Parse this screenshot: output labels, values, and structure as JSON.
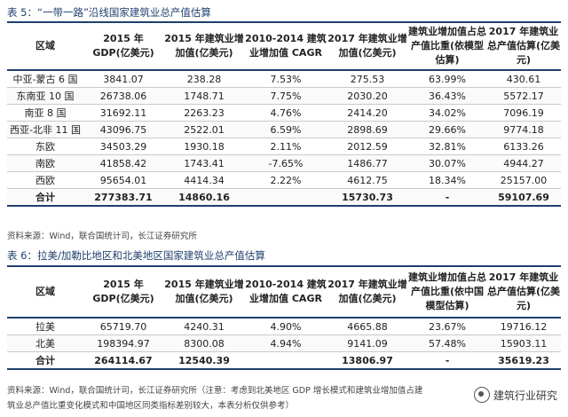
{
  "table5": {
    "caption_label": "表 5：",
    "caption_text": "“一带一路”沿线国家建筑业总产值估算",
    "headers": [
      "区域",
      "2015 年 GDP(亿美元)",
      "2015 年建筑业增加值(亿美元)",
      "2010-2014 建筑业增加值 CAGR",
      "2017 年建筑业增加值(亿美元)",
      "建筑业增加值占总产值比重(依模型估算)",
      "2017 年建筑业总产值估算(亿美元)"
    ],
    "rows": [
      [
        "中亚-蒙古 6 国",
        "3841.07",
        "238.28",
        "7.53%",
        "275.53",
        "63.99%",
        "430.61"
      ],
      [
        "东南亚 10 国",
        "26738.06",
        "1748.71",
        "7.75%",
        "2030.20",
        "36.43%",
        "5572.17"
      ],
      [
        "南亚 8 国",
        "31692.11",
        "2263.23",
        "4.76%",
        "2414.20",
        "34.02%",
        "7096.19"
      ],
      [
        "西亚-北非 11 国",
        "43096.75",
        "2522.01",
        "6.59%",
        "2898.69",
        "29.66%",
        "9774.18"
      ],
      [
        "东欧",
        "34503.29",
        "1930.18",
        "2.11%",
        "2012.59",
        "32.81%",
        "6133.26"
      ],
      [
        "南欧",
        "41858.42",
        "1743.41",
        "-7.65%",
        "1486.77",
        "30.07%",
        "4944.27"
      ],
      [
        "西欧",
        "95654.01",
        "4414.34",
        "2.22%",
        "4612.75",
        "18.34%",
        "25157.00"
      ]
    ],
    "total": [
      "合计",
      "277383.71",
      "14860.16",
      "",
      "15730.73",
      "-",
      "59107.69"
    ],
    "source": "资料来源：Wind，联合国统计司，长江证券研究所"
  },
  "table6": {
    "caption_label": "表 6：",
    "caption_text": "拉美/加勒比地区和北美地区国家建筑业总产值估算",
    "headers": [
      "区域",
      "2015 年 GDP(亿美元)",
      "2015 年建筑业增加值(亿美元)",
      "2010-2014 建筑业增加值 CAGR",
      "2017 年建筑业增加值(亿美元)",
      "建筑业增加值占总产值比重(依中国模型估算)",
      "2017 年建筑业总产值估算(亿美元)"
    ],
    "rows": [
      [
        "拉美",
        "65719.70",
        "4240.31",
        "4.90%",
        "4665.88",
        "23.67%",
        "19716.12"
      ],
      [
        "北美",
        "198394.97",
        "8300.08",
        "4.94%",
        "9141.09",
        "57.48%",
        "15903.11"
      ]
    ],
    "total": [
      "合计",
      "264114.67",
      "12540.39",
      "",
      "13806.97",
      "-",
      "35619.23"
    ],
    "source": "资料来源：Wind，联合国统计司，长江证券研究所（注意：考虑到北美地区 GDP 增长模式和建筑业增加值占建",
    "source2": "筑业总产值比重变化模式和中国地区同类指标差别较大，本表分析仅供参考）"
  },
  "watermark": {
    "text": "建筑行业研究",
    "icon": "wechat-icon"
  }
}
